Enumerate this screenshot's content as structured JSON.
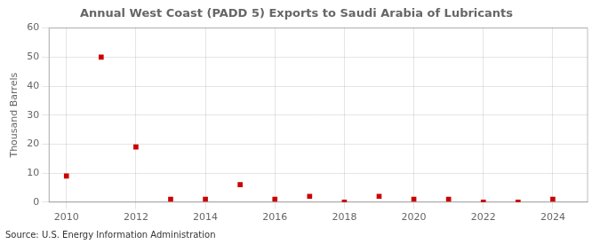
{
  "chart_data": {
    "type": "scatter",
    "title": "Annual West Coast (PADD 5) Exports to Saudi Arabia of Lubricants",
    "y_label": "Thousand Barrels",
    "annotations": [
      "Source: U.S. Energy Information Administration"
    ],
    "x": [
      2010,
      2011,
      2012,
      2013,
      2014,
      2015,
      2016,
      2017,
      2018,
      2019,
      2020,
      2021,
      2022,
      2023,
      2024
    ],
    "values": [
      9,
      50,
      19,
      1,
      1,
      6,
      1,
      2,
      0,
      2,
      1,
      1,
      0,
      0,
      1
    ],
    "color": "#cc0000",
    "marker": "square",
    "xlim": [
      2009.5,
      2025.0
    ],
    "xticks": [
      2010,
      2012,
      2014,
      2016,
      2018,
      2020,
      2022,
      2024
    ],
    "ylim": [
      0,
      60
    ],
    "yticks": [
      0,
      10,
      20,
      30,
      40,
      50,
      60
    ],
    "grid": true
  }
}
